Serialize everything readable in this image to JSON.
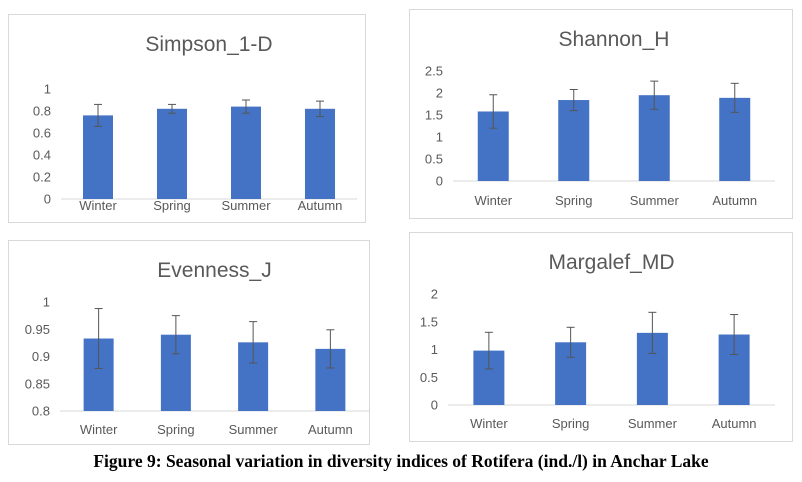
{
  "chart_data": [
    {
      "type": "bar",
      "title": "Simpson_1-D",
      "categories": [
        "Winter",
        "Spring",
        "Summer",
        "Autumn"
      ],
      "values": [
        0.76,
        0.82,
        0.84,
        0.82
      ],
      "error": [
        0.1,
        0.04,
        0.06,
        0.07
      ],
      "yticks": [
        "0",
        "0.2",
        "0.4",
        "0.6",
        "0.8",
        "1"
      ],
      "ylim": [
        0,
        1
      ],
      "grid": false,
      "legend": "none",
      "bar_color": "#4472c4"
    },
    {
      "type": "bar",
      "title": "Shannon_H",
      "categories": [
        "Winter",
        "Spring",
        "Summer",
        "Autumn"
      ],
      "values": [
        1.58,
        1.84,
        1.95,
        1.89
      ],
      "error": [
        0.38,
        0.24,
        0.32,
        0.33
      ],
      "yticks": [
        "0",
        "0.5",
        "1",
        "1.5",
        "2",
        "2.5"
      ],
      "ylim": [
        0,
        2.5
      ],
      "grid": false,
      "legend": "none",
      "bar_color": "#4472c4"
    },
    {
      "type": "bar",
      "title": "Evenness_J",
      "categories": [
        "Winter",
        "Spring",
        "Summer",
        "Autumn"
      ],
      "values": [
        0.933,
        0.94,
        0.926,
        0.914
      ],
      "error": [
        0.055,
        0.035,
        0.038,
        0.035
      ],
      "yticks": [
        "0.8",
        "0.85",
        "0.9",
        "0.95",
        "1"
      ],
      "ylim": [
        0.8,
        1
      ],
      "grid": false,
      "legend": "none",
      "bar_color": "#4472c4"
    },
    {
      "type": "bar",
      "title": "Margalef_MD",
      "categories": [
        "Winter",
        "Spring",
        "Summer",
        "Autumn"
      ],
      "values": [
        0.98,
        1.13,
        1.3,
        1.27
      ],
      "error": [
        0.33,
        0.27,
        0.37,
        0.36
      ],
      "yticks": [
        "0",
        "0.5",
        "1",
        "1.5",
        "2"
      ],
      "ylim": [
        0,
        2
      ],
      "grid": false,
      "legend": "none",
      "bar_color": "#4472c4"
    }
  ],
  "caption": "Figure 9: Seasonal variation in diversity indices of Rotifera (ind./l) in Anchar Lake"
}
